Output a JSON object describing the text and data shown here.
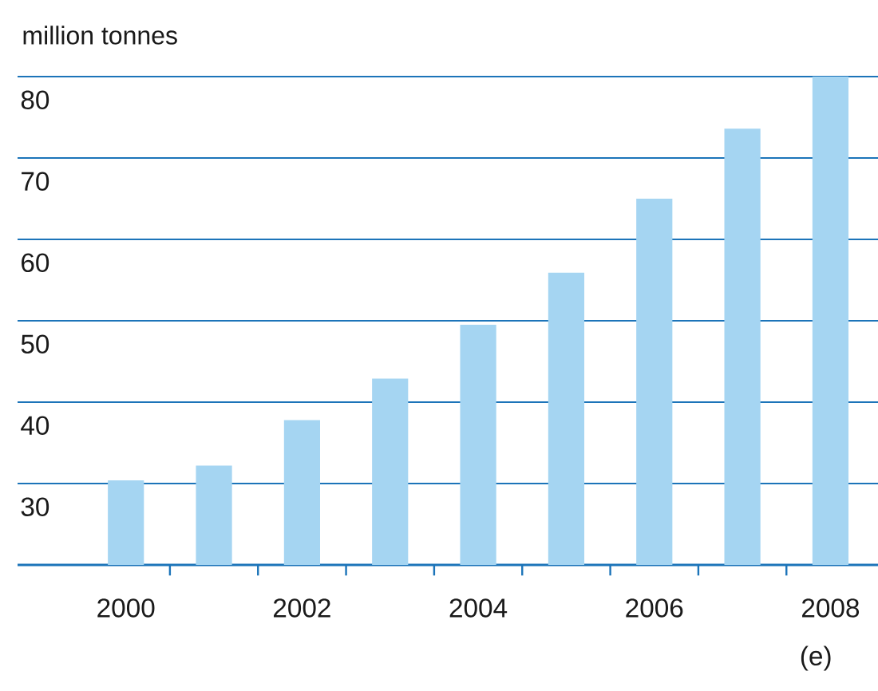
{
  "chart_data": {
    "type": "bar",
    "ylabel": "million tonnes",
    "categories": [
      "2000",
      null,
      "2002",
      null,
      "2004",
      null,
      "2006",
      null,
      "2008"
    ],
    "values": [
      30.4,
      32.2,
      37.8,
      42.9,
      49.5,
      55.9,
      65.0,
      73.6,
      80.0
    ],
    "color": "#a5d5f2",
    "ylim": [
      20,
      80
    ],
    "yticks": [
      30,
      40,
      50,
      60,
      70,
      80
    ],
    "grid": "y",
    "annotations": [
      "(e)"
    ]
  }
}
